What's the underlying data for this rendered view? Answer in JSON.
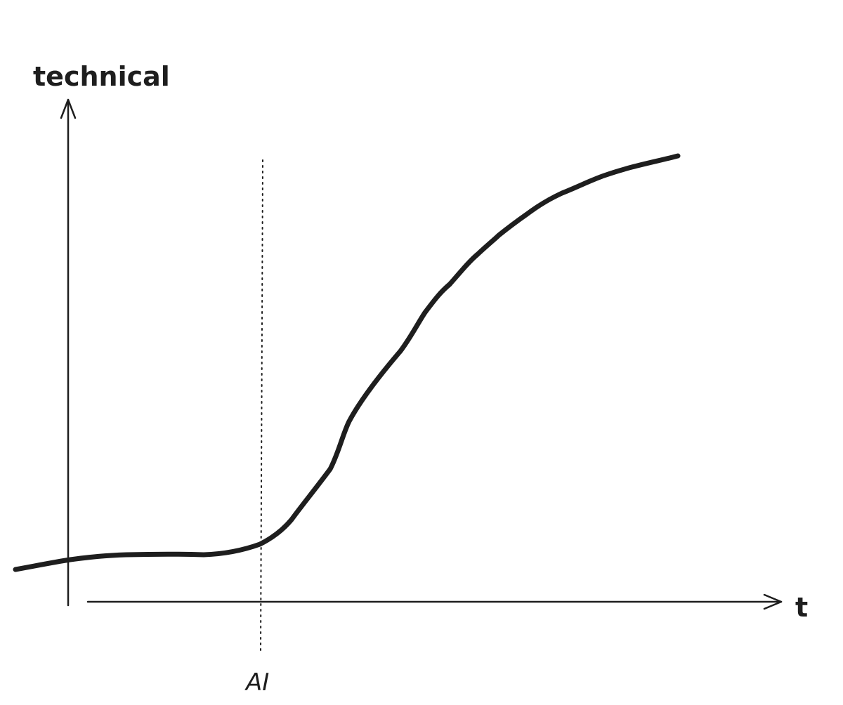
{
  "labels": {
    "y_axis": "technical",
    "x_axis": "t",
    "marker": "AI"
  }
}
